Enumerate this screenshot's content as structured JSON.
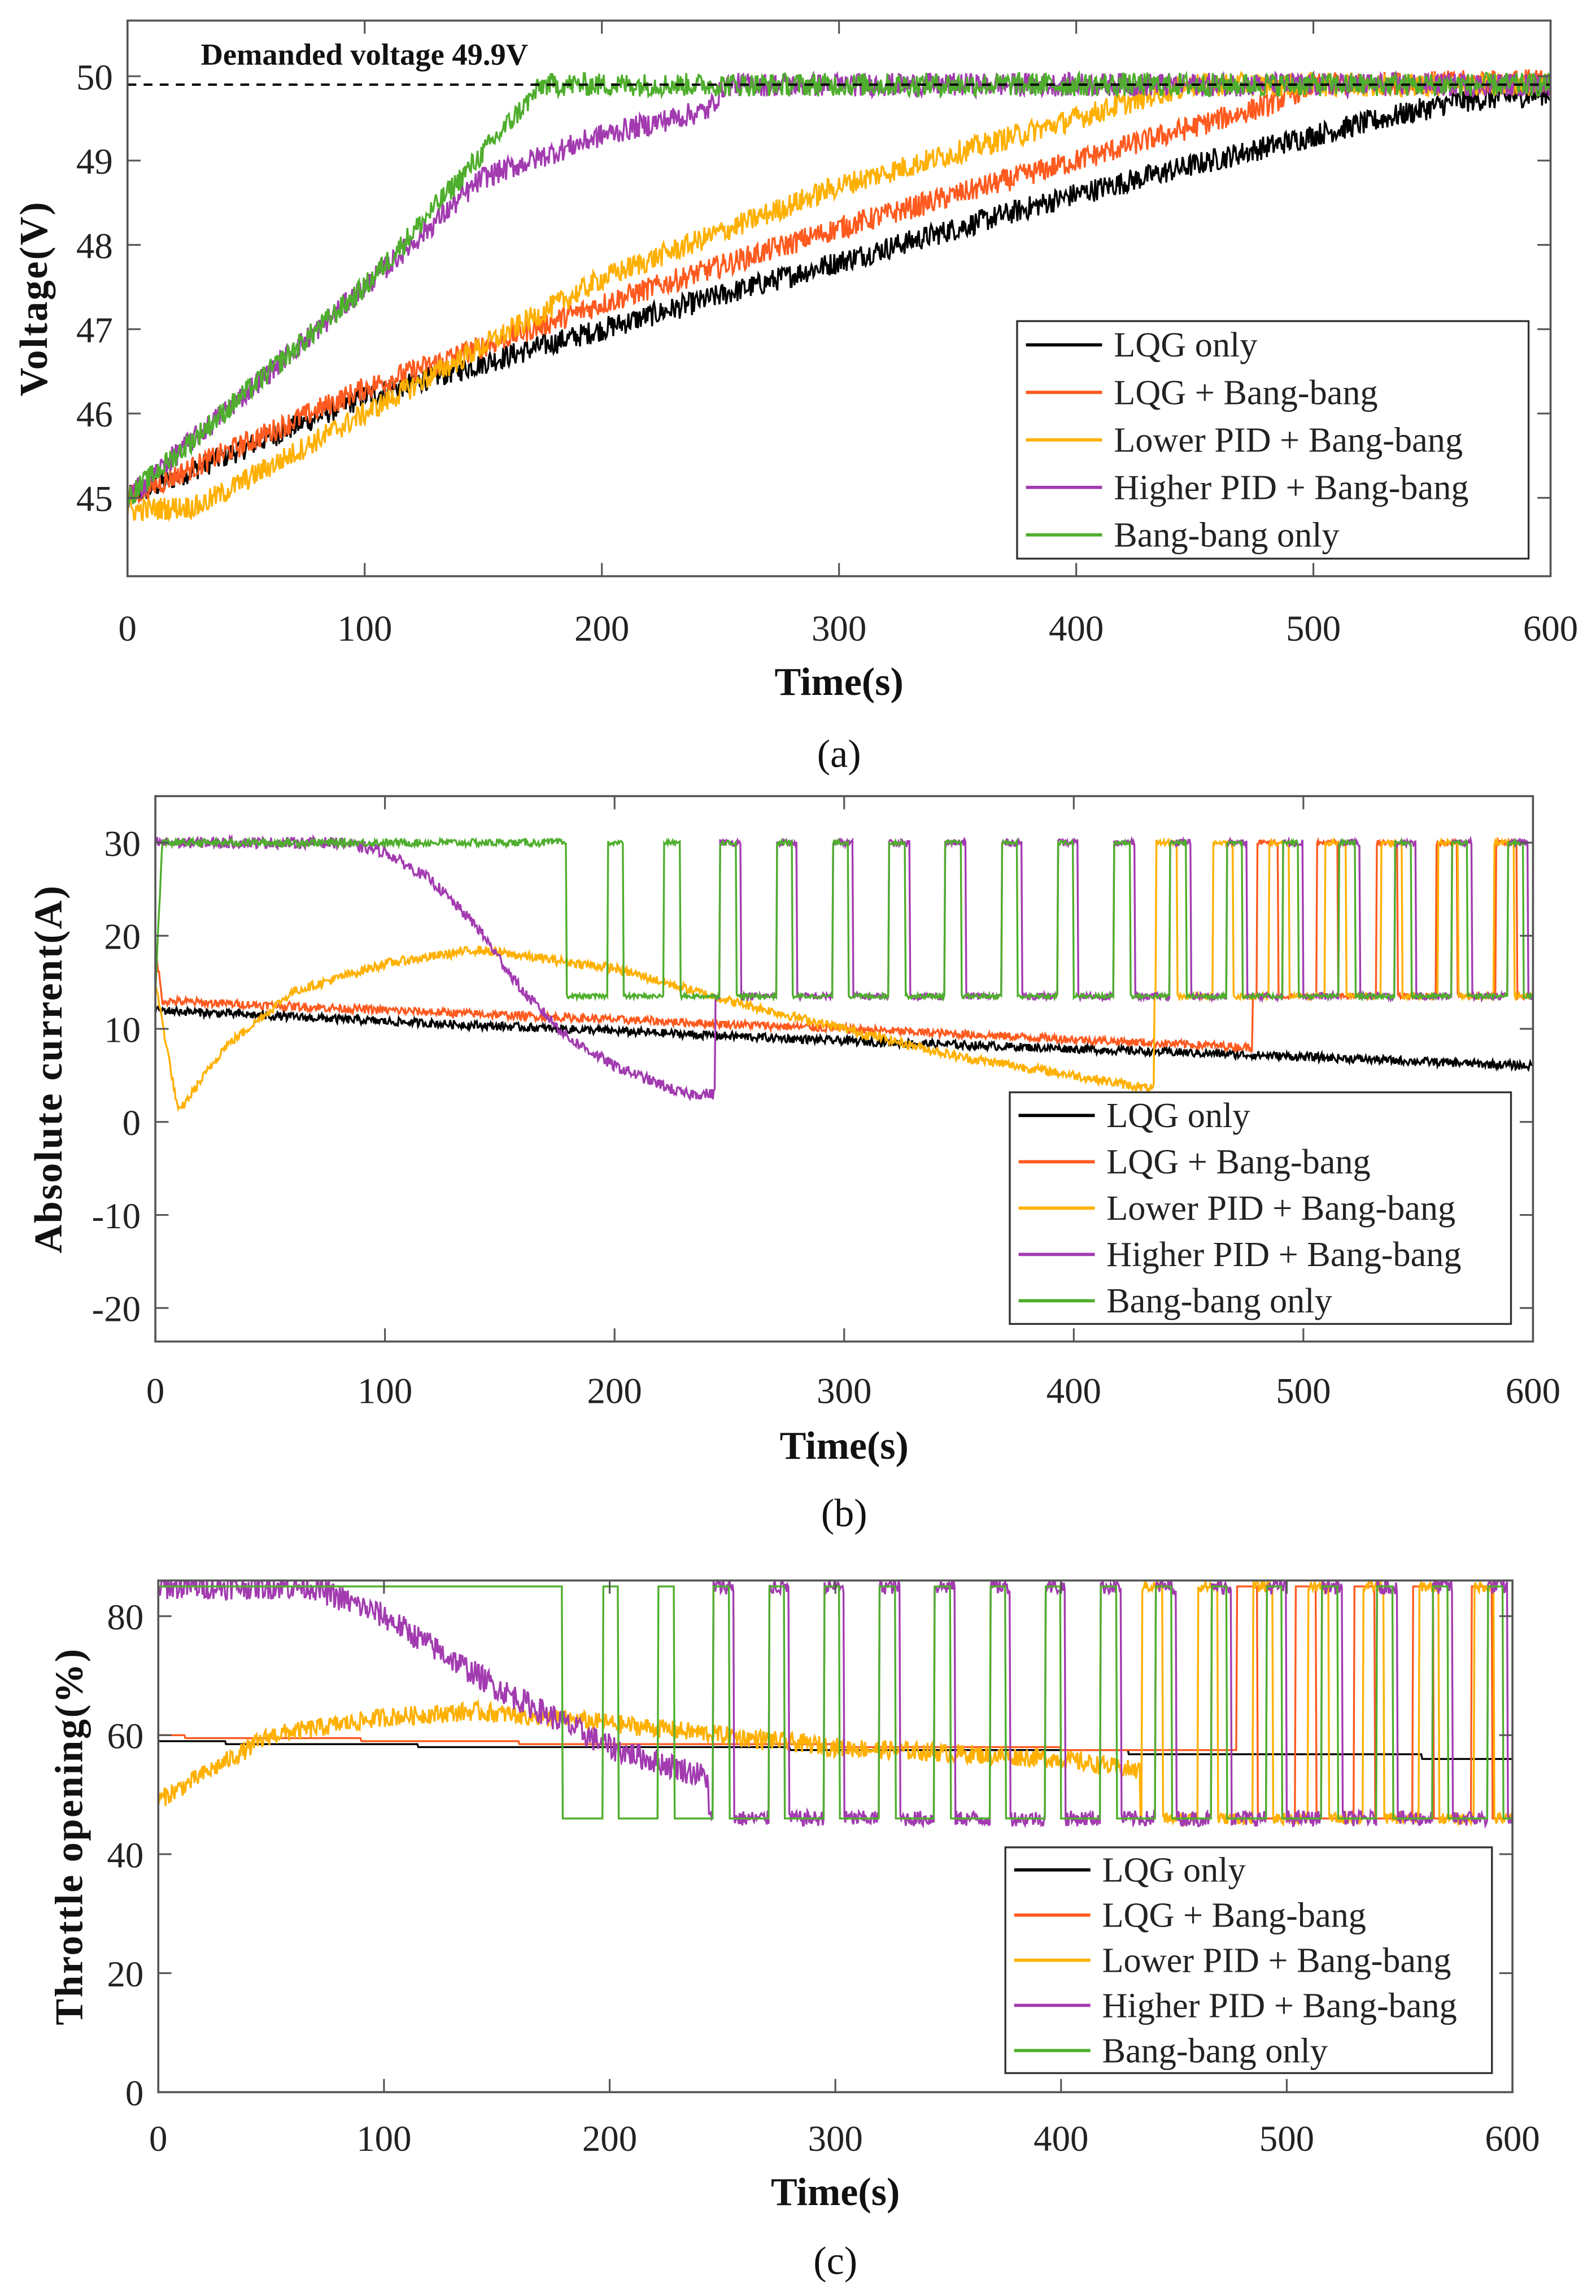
{
  "chart_data": [
    {
      "type": "line",
      "panel_label": "(a)",
      "annotation": "Demanded voltage 49.9V",
      "reference_line": 49.9,
      "xlabel": "Time(s)",
      "ylabel": "Voltage(V)",
      "xlim": [
        0,
        600
      ],
      "ylim": [
        44.07,
        50.66
      ],
      "xticks": [
        "0",
        "100",
        "200",
        "300",
        "400",
        "500",
        "600"
      ],
      "yticks": [
        "45",
        "46",
        "47",
        "48",
        "49",
        "50"
      ],
      "legend_position": "bottom-right",
      "series": [
        {
          "name": "LQG only",
          "color": "#000000",
          "noise": 0.14,
          "points": [
            [
              0,
              45
            ],
            [
              50,
              45.6
            ],
            [
              100,
              46.2
            ],
            [
              200,
              47.0
            ],
            [
              300,
              47.8
            ],
            [
              400,
              48.6
            ],
            [
              500,
              49.3
            ],
            [
              560,
              49.7
            ],
            [
              600,
              49.8
            ]
          ]
        },
        {
          "name": "LQG + Bang-bang",
          "color": "#ff5a1f",
          "noise": 0.14,
          "points": [
            [
              0,
              45
            ],
            [
              100,
              46.3
            ],
            [
              200,
              47.3
            ],
            [
              300,
              48.2
            ],
            [
              400,
              49.0
            ],
            [
              480,
              49.65
            ],
            [
              500,
              49.9
            ],
            [
              600,
              49.95
            ]
          ]
        },
        {
          "name": "Lower PID + Bang-bang",
          "color": "#ffb000",
          "noise": 0.14,
          "points": [
            [
              0,
              44.85
            ],
            [
              30,
              44.9
            ],
            [
              100,
              46.0
            ],
            [
              200,
              47.6
            ],
            [
              300,
              48.7
            ],
            [
              400,
              49.5
            ],
            [
              435,
              49.8
            ],
            [
              450,
              49.9
            ],
            [
              600,
              49.9
            ]
          ]
        },
        {
          "name": "Higher PID + Bang-bang",
          "color": "#a23bb0",
          "noise": 0.14,
          "points": [
            [
              0,
              45
            ],
            [
              100,
              47.5
            ],
            [
              150,
              48.8
            ],
            [
              200,
              49.3
            ],
            [
              245,
              49.6
            ],
            [
              252,
              49.9
            ],
            [
              600,
              49.9
            ]
          ]
        },
        {
          "name": "Bang-bang only",
          "color": "#4fae2d",
          "noise": 0.14,
          "points": [
            [
              0,
              45
            ],
            [
              100,
              47.5
            ],
            [
              175,
              49.9
            ],
            [
              600,
              49.9
            ]
          ]
        }
      ]
    },
    {
      "type": "line",
      "panel_label": "(b)",
      "xlabel": "Time(s)",
      "ylabel": "Absolute current(A)",
      "xlim": [
        0,
        600
      ],
      "ylim": [
        -23.6,
        35
      ],
      "xticks": [
        "0",
        "100",
        "200",
        "300",
        "400",
        "500",
        "600"
      ],
      "yticks": [
        "-20",
        "-10",
        "0",
        "10",
        "20",
        "30"
      ],
      "legend_position": "bottom-right",
      "series": [
        {
          "name": "LQG only",
          "color": "#000000",
          "noise": 0.45,
          "points": [
            [
              0,
              12
            ],
            [
              100,
              10.8
            ],
            [
              300,
              8.7
            ],
            [
              500,
              7.0
            ],
            [
              600,
              6.0
            ]
          ]
        },
        {
          "name": "LQG + Bang-bang",
          "color": "#ff5a1f",
          "noise": 0.45,
          "points": [
            [
              0,
              19
            ],
            [
              3,
              13
            ],
            [
              100,
              12
            ],
            [
              300,
              10
            ],
            [
              478,
              8
            ]
          ],
          "switching": {
            "start": 478,
            "first_high": 480,
            "period": 26,
            "high_duration": 9,
            "high": 30,
            "low": 13.5
          }
        },
        {
          "name": "Lower PID + Bang-bang",
          "color": "#ffb000",
          "noise": 0.5,
          "points": [
            [
              0,
              15
            ],
            [
              10,
              1
            ],
            [
              30,
              8
            ],
            [
              60,
              14
            ],
            [
              100,
              17
            ],
            [
              140,
              18.5
            ],
            [
              200,
              16.5
            ],
            [
              250,
              13
            ],
            [
              300,
              10
            ],
            [
              350,
              7
            ],
            [
              400,
              5
            ],
            [
              434,
              3.5
            ]
          ],
          "switching": {
            "start": 435,
            "first_high": 436,
            "period": 24.5,
            "high_duration": 9,
            "high": 30,
            "low": 13.5
          }
        },
        {
          "name": "Higher PID + Bang-bang",
          "color": "#a23bb0",
          "noise": 0.6,
          "points": [
            [
              0,
              30
            ],
            [
              80,
              30
            ],
            [
              100,
              29
            ],
            [
              120,
              26
            ],
            [
              140,
              21
            ],
            [
              160,
              14
            ],
            [
              180,
              9
            ],
            [
              200,
              6
            ],
            [
              230,
              3
            ],
            [
              243,
              3
            ]
          ],
          "switching": {
            "start": 244,
            "first_high": 246,
            "period": 24.5,
            "high_duration": 9,
            "high": 30,
            "low": 13.5
          }
        },
        {
          "name": "Bang-bang only",
          "color": "#4fae2d",
          "noise": 0.4,
          "points": [
            [
              0,
              14
            ],
            [
              3,
              30
            ],
            [
              179,
              30
            ]
          ],
          "switching": {
            "start": 179,
            "first_high": 197,
            "period": 24.5,
            "high_duration": 7,
            "high": 30,
            "low": 13.5
          }
        }
      ]
    },
    {
      "type": "line",
      "panel_label": "(c)",
      "xlabel": "Time(s)",
      "ylabel": "Throttle opening(%)",
      "xlim": [
        0,
        600
      ],
      "ylim": [
        0,
        86
      ],
      "xticks": [
        "0",
        "100",
        "200",
        "300",
        "400",
        "500",
        "600"
      ],
      "yticks": [
        "0",
        "20",
        "40",
        "60",
        "80"
      ],
      "legend_position": "bottom-right",
      "series": [
        {
          "name": "LQG only",
          "color": "#000000",
          "noise": 0,
          "steps": [
            [
              0,
              59
            ],
            [
              30,
              58.5
            ],
            [
              115,
              58
            ],
            [
              280,
              57.5
            ],
            [
              430,
              56.8
            ],
            [
              560,
              56
            ]
          ]
        },
        {
          "name": "LQG + Bang-bang",
          "color": "#ff5a1f",
          "noise": 0,
          "steps": [
            [
              0,
              60
            ],
            [
              12,
              59.5
            ],
            [
              90,
              59
            ],
            [
              160,
              58.5
            ],
            [
              300,
              58
            ],
            [
              400,
              57.5
            ]
          ],
          "switching": {
            "start": 478,
            "first_high": 478,
            "period": 26,
            "high_duration": 9,
            "high": 85,
            "low": 46
          }
        },
        {
          "name": "Lower PID + Bang-bang",
          "color": "#ffb000",
          "noise": 1.6,
          "points": [
            [
              0,
              49
            ],
            [
              50,
              60
            ],
            [
              100,
              63
            ],
            [
              140,
              64
            ],
            [
              200,
              62
            ],
            [
              300,
              58
            ],
            [
              400,
              56
            ],
            [
              434,
              54
            ]
          ],
          "switching": {
            "start": 435,
            "first_high": 436,
            "period": 24.5,
            "high_duration": 9,
            "high": 85,
            "low": 46
          }
        },
        {
          "name": "Higher PID + Bang-bang",
          "color": "#a23bb0",
          "noise": 2.2,
          "points": [
            [
              0,
              85
            ],
            [
              68,
              85
            ],
            [
              100,
              80
            ],
            [
              150,
              68
            ],
            [
              200,
              58
            ],
            [
              243,
              53
            ]
          ],
          "switching": {
            "start": 244,
            "first_high": 246,
            "period": 24.5,
            "high_duration": 9,
            "high": 85,
            "low": 46
          }
        },
        {
          "name": "Bang-bang only",
          "color": "#4fae2d",
          "noise": 0,
          "points": [
            [
              0,
              85
            ],
            [
              179,
              85
            ]
          ],
          "switching": {
            "start": 179,
            "first_high": 197,
            "period": 24.5,
            "high_duration": 7,
            "high": 85,
            "low": 46
          }
        }
      ]
    }
  ]
}
